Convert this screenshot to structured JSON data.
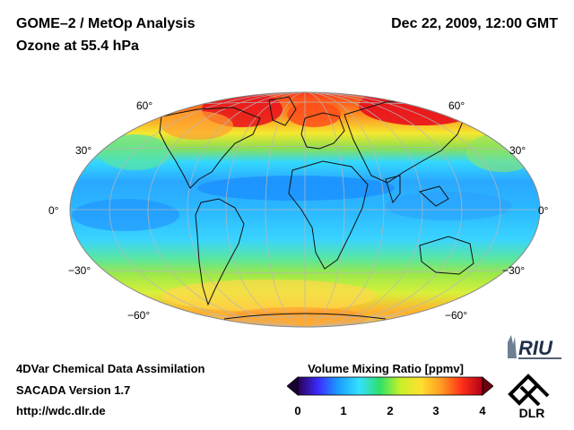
{
  "header": {
    "instrument": "GOME–2 / MetOp Analysis",
    "product": "Ozone at 55.4 hPa",
    "datetime": "Dec 22, 2009, 12:00 GMT"
  },
  "map": {
    "projection": "hammer-aitoff",
    "lat_labels": [
      "60°",
      "30°",
      "0°",
      "−30°",
      "−60°"
    ],
    "field_description": "Ozone volume mixing ratio; high (~3.5–4 ppmv) in northern mid-latitudes, low (~1.5 ppmv) in tropics"
  },
  "footer": {
    "line1": "4DVar Chemical Data Assimilation",
    "line2": "SACADA Version 1.7",
    "line3": "http://wdc.dlr.de"
  },
  "colorbar": {
    "title": "Volume Mixing Ratio [ppmv]",
    "ticks": [
      "0",
      "1",
      "2",
      "3",
      "4"
    ],
    "min": 0,
    "max": 4,
    "colors": [
      "#2a0050",
      "#3b2cff",
      "#1aa0ff",
      "#35e0ff",
      "#2ee06a",
      "#c8f028",
      "#ffe030",
      "#ff9a20",
      "#ff3018",
      "#b00018"
    ]
  },
  "logos": {
    "riu": "RIU",
    "dlr": "DLR"
  }
}
